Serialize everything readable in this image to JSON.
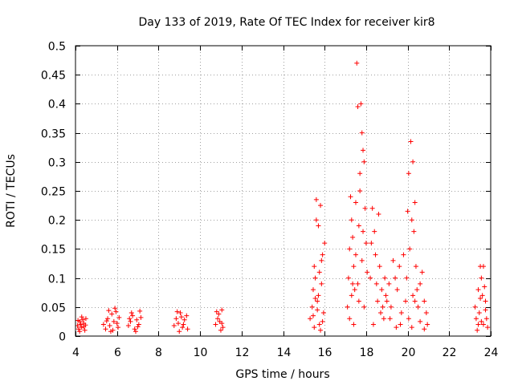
{
  "chart_data": {
    "type": "scatter",
    "title": "Day 133 of 2019, Rate Of TEC Index for receiver kir8",
    "xlabel": "GPS time / hours",
    "ylabel": "ROTI / TECUs",
    "xlim": [
      4,
      24
    ],
    "ylim": [
      0,
      0.5
    ],
    "xticks": [
      "4",
      "6",
      "8",
      "10",
      "12",
      "14",
      "16",
      "18",
      "20",
      "22",
      "24"
    ],
    "yticks": [
      "0",
      "0.05",
      "0.1",
      "0.15",
      "0.2",
      "0.25",
      "0.3",
      "0.35",
      "0.4",
      "0.45",
      "0.5"
    ],
    "grid": true,
    "marker": "+",
    "color": "#ff0000",
    "series": [
      {
        "name": "ROTI",
        "points": [
          [
            4.1,
            0.018
          ],
          [
            4.15,
            0.012
          ],
          [
            4.2,
            0.025
          ],
          [
            4.25,
            0.02
          ],
          [
            4.3,
            0.015
          ],
          [
            4.35,
            0.028
          ],
          [
            4.4,
            0.022
          ],
          [
            4.45,
            0.01
          ],
          [
            4.5,
            0.03
          ],
          [
            4.3,
            0.033
          ],
          [
            4.2,
            0.008
          ],
          [
            4.4,
            0.016
          ],
          [
            4.12,
            0.027
          ],
          [
            4.48,
            0.019
          ],
          [
            5.35,
            0.02
          ],
          [
            5.45,
            0.012
          ],
          [
            5.55,
            0.03
          ],
          [
            5.65,
            0.018
          ],
          [
            5.75,
            0.038
          ],
          [
            5.85,
            0.025
          ],
          [
            5.95,
            0.042
          ],
          [
            6.05,
            0.015
          ],
          [
            6.1,
            0.032
          ],
          [
            5.7,
            0.008
          ],
          [
            5.9,
            0.048
          ],
          [
            6.0,
            0.022
          ],
          [
            5.6,
            0.044
          ],
          [
            5.8,
            0.01
          ],
          [
            5.5,
            0.026
          ],
          [
            6.55,
            0.018
          ],
          [
            6.65,
            0.025
          ],
          [
            6.75,
            0.035
          ],
          [
            6.85,
            0.012
          ],
          [
            6.95,
            0.028
          ],
          [
            7.05,
            0.02
          ],
          [
            7.15,
            0.032
          ],
          [
            6.7,
            0.04
          ],
          [
            6.9,
            0.008
          ],
          [
            7.1,
            0.043
          ],
          [
            6.6,
            0.03
          ],
          [
            7.0,
            0.016
          ],
          [
            8.75,
            0.018
          ],
          [
            8.85,
            0.03
          ],
          [
            8.95,
            0.022
          ],
          [
            9.05,
            0.04
          ],
          [
            9.15,
            0.015
          ],
          [
            9.25,
            0.028
          ],
          [
            9.35,
            0.035
          ],
          [
            9.0,
            0.008
          ],
          [
            9.2,
            0.02
          ],
          [
            8.9,
            0.042
          ],
          [
            9.4,
            0.012
          ],
          [
            9.1,
            0.033
          ],
          [
            10.75,
            0.02
          ],
          [
            10.85,
            0.03
          ],
          [
            10.95,
            0.025
          ],
          [
            11.05,
            0.045
          ],
          [
            11.1,
            0.015
          ],
          [
            10.9,
            0.038
          ],
          [
            11.0,
            0.01
          ],
          [
            10.8,
            0.042
          ],
          [
            11.05,
            0.022
          ],
          [
            15.3,
            0.03
          ],
          [
            15.4,
            0.05
          ],
          [
            15.45,
            0.08
          ],
          [
            15.5,
            0.12
          ],
          [
            15.55,
            0.1
          ],
          [
            15.6,
            0.235
          ],
          [
            15.65,
            0.06
          ],
          [
            15.7,
            0.19
          ],
          [
            15.75,
            0.02
          ],
          [
            15.8,
            0.225
          ],
          [
            15.85,
            0.09
          ],
          [
            15.9,
            0.14
          ],
          [
            15.95,
            0.04
          ],
          [
            16.0,
            0.16
          ],
          [
            15.5,
            0.015
          ],
          [
            15.7,
            0.07
          ],
          [
            15.85,
            0.13
          ],
          [
            15.55,
            0.065
          ],
          [
            15.65,
            0.045
          ],
          [
            15.75,
            0.11
          ],
          [
            15.9,
            0.025
          ],
          [
            15.6,
            0.2
          ],
          [
            15.8,
            0.01
          ],
          [
            15.45,
            0.035
          ],
          [
            17.1,
            0.05
          ],
          [
            17.15,
            0.1
          ],
          [
            17.2,
            0.15
          ],
          [
            17.25,
            0.24
          ],
          [
            17.3,
            0.2
          ],
          [
            17.35,
            0.17
          ],
          [
            17.4,
            0.12
          ],
          [
            17.45,
            0.08
          ],
          [
            17.5,
            0.23
          ],
          [
            17.55,
            0.47
          ],
          [
            17.6,
            0.395
          ],
          [
            17.65,
            0.19
          ],
          [
            17.7,
            0.25
          ],
          [
            17.75,
            0.4
          ],
          [
            17.8,
            0.35
          ],
          [
            17.85,
            0.32
          ],
          [
            17.9,
            0.3
          ],
          [
            17.95,
            0.22
          ],
          [
            18.0,
            0.16
          ],
          [
            18.05,
            0.11
          ],
          [
            17.2,
            0.03
          ],
          [
            17.3,
            0.07
          ],
          [
            17.4,
            0.02
          ],
          [
            17.6,
            0.09
          ],
          [
            17.8,
            0.13
          ],
          [
            17.9,
            0.05
          ],
          [
            17.7,
            0.28
          ],
          [
            17.5,
            0.14
          ],
          [
            17.35,
            0.09
          ],
          [
            17.65,
            0.06
          ],
          [
            17.85,
            0.18
          ],
          [
            18.2,
            0.1
          ],
          [
            18.3,
            0.22
          ],
          [
            18.4,
            0.18
          ],
          [
            18.45,
            0.14
          ],
          [
            18.5,
            0.09
          ],
          [
            18.55,
            0.06
          ],
          [
            18.6,
            0.21
          ],
          [
            18.65,
            0.12
          ],
          [
            18.7,
            0.04
          ],
          [
            18.75,
            0.08
          ],
          [
            18.8,
            0.05
          ],
          [
            18.85,
            0.03
          ],
          [
            18.9,
            0.1
          ],
          [
            18.95,
            0.07
          ],
          [
            19.0,
            0.06
          ],
          [
            19.1,
            0.09
          ],
          [
            19.2,
            0.05
          ],
          [
            19.3,
            0.13
          ],
          [
            19.4,
            0.1
          ],
          [
            19.5,
            0.08
          ],
          [
            19.6,
            0.12
          ],
          [
            19.7,
            0.04
          ],
          [
            19.8,
            0.14
          ],
          [
            18.35,
            0.02
          ],
          [
            19.15,
            0.03
          ],
          [
            19.45,
            0.015
          ],
          [
            18.25,
            0.16
          ],
          [
            19.65,
            0.02
          ],
          [
            19.9,
            0.06
          ],
          [
            20.0,
            0.215
          ],
          [
            20.05,
            0.28
          ],
          [
            20.1,
            0.15
          ],
          [
            20.15,
            0.335
          ],
          [
            20.2,
            0.2
          ],
          [
            20.25,
            0.3
          ],
          [
            20.3,
            0.18
          ],
          [
            20.35,
            0.23
          ],
          [
            20.4,
            0.12
          ],
          [
            20.45,
            0.08
          ],
          [
            20.5,
            0.05
          ],
          [
            20.6,
            0.09
          ],
          [
            20.7,
            0.11
          ],
          [
            20.8,
            0.06
          ],
          [
            20.9,
            0.04
          ],
          [
            20.95,
            0.02
          ],
          [
            20.05,
            0.03
          ],
          [
            20.2,
            0.015
          ],
          [
            20.35,
            0.06
          ],
          [
            20.6,
            0.025
          ],
          [
            20.8,
            0.012
          ],
          [
            20.25,
            0.07
          ],
          [
            19.95,
            0.1
          ],
          [
            23.25,
            0.05
          ],
          [
            23.3,
            0.03
          ],
          [
            23.4,
            0.02
          ],
          [
            23.45,
            0.04
          ],
          [
            23.5,
            0.12
          ],
          [
            23.55,
            0.1
          ],
          [
            23.6,
            0.07
          ],
          [
            23.65,
            0.12
          ],
          [
            23.7,
            0.085
          ],
          [
            23.75,
            0.06
          ],
          [
            23.8,
            0.03
          ],
          [
            23.85,
            0.015
          ],
          [
            23.35,
            0.01
          ],
          [
            23.55,
            0.025
          ],
          [
            23.75,
            0.045
          ],
          [
            23.5,
            0.065
          ],
          [
            23.65,
            0.02
          ],
          [
            23.4,
            0.08
          ]
        ]
      }
    ]
  }
}
